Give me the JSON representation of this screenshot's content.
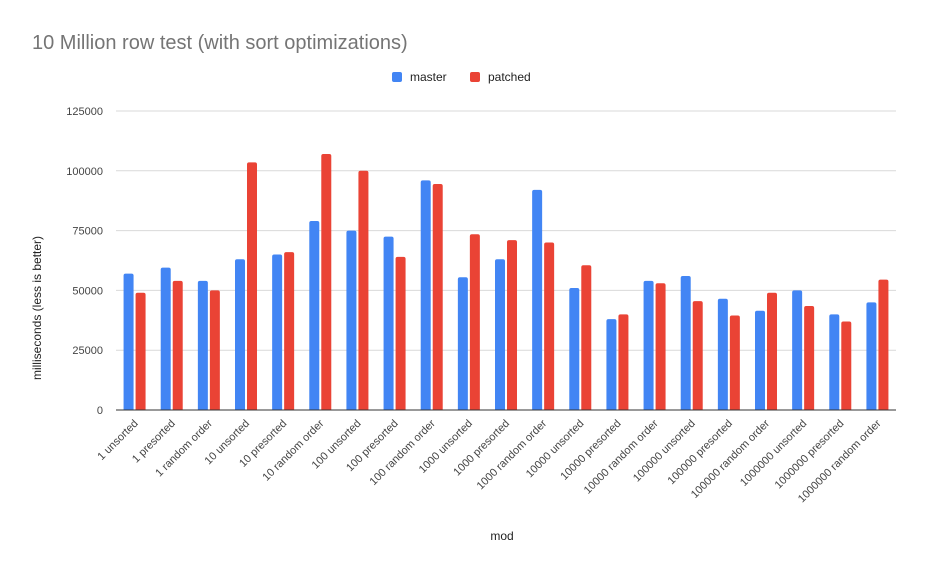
{
  "chart_data": {
    "type": "bar",
    "title": "10 Million row test (with sort optimizations)",
    "xlabel": "mod",
    "ylabel": "milliseconds (less is better)",
    "ylim": [
      0,
      125000
    ],
    "yticks": [
      0,
      25000,
      50000,
      75000,
      100000,
      125000
    ],
    "ytick_labels": [
      "0",
      "25000",
      "50000",
      "75000",
      "100000",
      "125000"
    ],
    "grid": true,
    "legend_position": "top-center",
    "categories": [
      "1 unsorted",
      "1 presorted",
      "1 random order",
      "10 unsorted",
      "10 presorted",
      "10 random order",
      "100 unsorted",
      "100 presorted",
      "100 random order",
      "1000 unsorted",
      "1000 presorted",
      "1000 random order",
      "10000 unsorted",
      "10000 presorted",
      "10000 random order",
      "100000 unsorted",
      "100000 presorted",
      "100000 random order",
      "1000000 unsorted",
      "1000000 presorted",
      "1000000 random order"
    ],
    "series": [
      {
        "name": "master",
        "color": "#4285f4",
        "values": [
          57000,
          59500,
          54000,
          63000,
          65000,
          79000,
          75000,
          72500,
          96000,
          55500,
          63000,
          92000,
          51000,
          38000,
          54000,
          56000,
          46500,
          41500,
          50000,
          40000,
          45000
        ]
      },
      {
        "name": "patched",
        "color": "#ea4335",
        "values": [
          49000,
          54000,
          50000,
          103500,
          66000,
          107000,
          100000,
          64000,
          94500,
          73500,
          71000,
          70000,
          60500,
          40000,
          53000,
          45500,
          39500,
          49000,
          43500,
          37000,
          54500
        ]
      }
    ]
  }
}
